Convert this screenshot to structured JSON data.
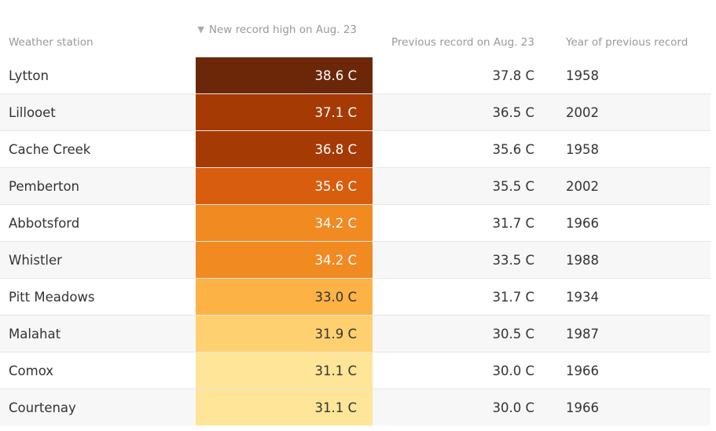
{
  "chart_data": {
    "type": "table",
    "columns": {
      "station": "Weather station",
      "new_record": "New record high on Aug. 23",
      "previous_record": "Previous record on Aug. 23",
      "year": "Year of previous record"
    },
    "sort_indicator": "▼",
    "rows": [
      {
        "station": "Lytton",
        "new_record": "38.6 C",
        "value": 38.6,
        "previous_record": "37.8 C",
        "year": "1958"
      },
      {
        "station": "Lillooet",
        "new_record": "37.1 C",
        "value": 37.1,
        "previous_record": "36.5 C",
        "year": "2002"
      },
      {
        "station": "Cache Creek",
        "new_record": "36.8 C",
        "value": 36.8,
        "previous_record": "35.6 C",
        "year": "1958"
      },
      {
        "station": "Pemberton",
        "new_record": "35.6 C",
        "value": 35.6,
        "previous_record": "35.5 C",
        "year": "2002"
      },
      {
        "station": "Abbotsford",
        "new_record": "34.2 C",
        "value": 34.2,
        "previous_record": "31.7 C",
        "year": "1966"
      },
      {
        "station": "Whistler",
        "new_record": "34.2 C",
        "value": 34.2,
        "previous_record": "33.5 C",
        "year": "1988"
      },
      {
        "station": "Pitt Meadows",
        "new_record": "33.0 C",
        "value": 33.0,
        "previous_record": "31.7 C",
        "year": "1934"
      },
      {
        "station": "Malahat",
        "new_record": "31.9 C",
        "value": 31.9,
        "previous_record": "30.5 C",
        "year": "1987"
      },
      {
        "station": "Comox",
        "new_record": "31.1 C",
        "value": 31.1,
        "previous_record": "30.0 C",
        "year": "1966"
      },
      {
        "station": "Courtenay",
        "new_record": "31.1 C",
        "value": 31.1,
        "previous_record": "30.0 C",
        "year": "1966"
      }
    ],
    "heat_colors": [
      {
        "fill": "#6b2708",
        "text": "#ffffff"
      },
      {
        "fill": "#a63a04",
        "text": "#ffffff"
      },
      {
        "fill": "#a63a04",
        "text": "#ffffff"
      },
      {
        "fill": "#d95d0e",
        "text": "#ffffff"
      },
      {
        "fill": "#f28a22",
        "text": "#ffffff"
      },
      {
        "fill": "#f28a22",
        "text": "#ffffff"
      },
      {
        "fill": "#fdb246",
        "text": "#333333"
      },
      {
        "fill": "#fed070",
        "text": "#333333"
      },
      {
        "fill": "#fee597",
        "text": "#333333"
      },
      {
        "fill": "#fee597",
        "text": "#333333"
      }
    ]
  }
}
